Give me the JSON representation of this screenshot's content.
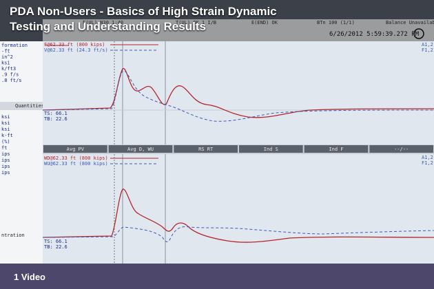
{
  "header": {
    "title_lines": [
      "PDA Non-Users - Basics of High Strain Dynamic",
      "Testing and Understanding Results"
    ],
    "timestamp": "6/26/2012 5:59:39.272 PM"
  },
  "toolbar": [
    "F(UL) N30 1:40",
    "T(UL) OK 1 I/B",
    "E(END) OK",
    "BTn 100 (1/1)",
    "Balance Unavailable"
  ],
  "sidebar": {
    "top": [
      "formation",
      "-ft",
      "in^2",
      "ksi",
      "k/ft3",
      ".9 f/s",
      ".8 ft/s"
    ],
    "quantities": "Quantities",
    "bottom": [
      "ksi",
      "ksi",
      "ksi",
      "k-ft",
      "(%)",
      "ft",
      "ips",
      "ips",
      "ips",
      "ips"
    ],
    "footer": "ntration"
  },
  "top_panel": {
    "legend": [
      "F@62.33 ft (800 kips)",
      "V@62.33 ft (24.3 ft/s)"
    ],
    "channels": [
      "A1,2",
      "F1,2"
    ],
    "ts": "TS: 66.1",
    "tb": "TB: 22.6"
  },
  "tabs": [
    "Avg PV",
    "Avg D, WU",
    "RS RT",
    "Ind S",
    "Ind F",
    "--/--"
  ],
  "bottom_panel": {
    "legend": [
      "WD@62.33 ft (800 kips)",
      "WU@62.33 ft (800 kips)"
    ],
    "channels": [
      "A1,2",
      "F1,2"
    ],
    "ts": "TS: 66.1",
    "tb": "TB: 22.6"
  },
  "video_label": "1 Video"
}
